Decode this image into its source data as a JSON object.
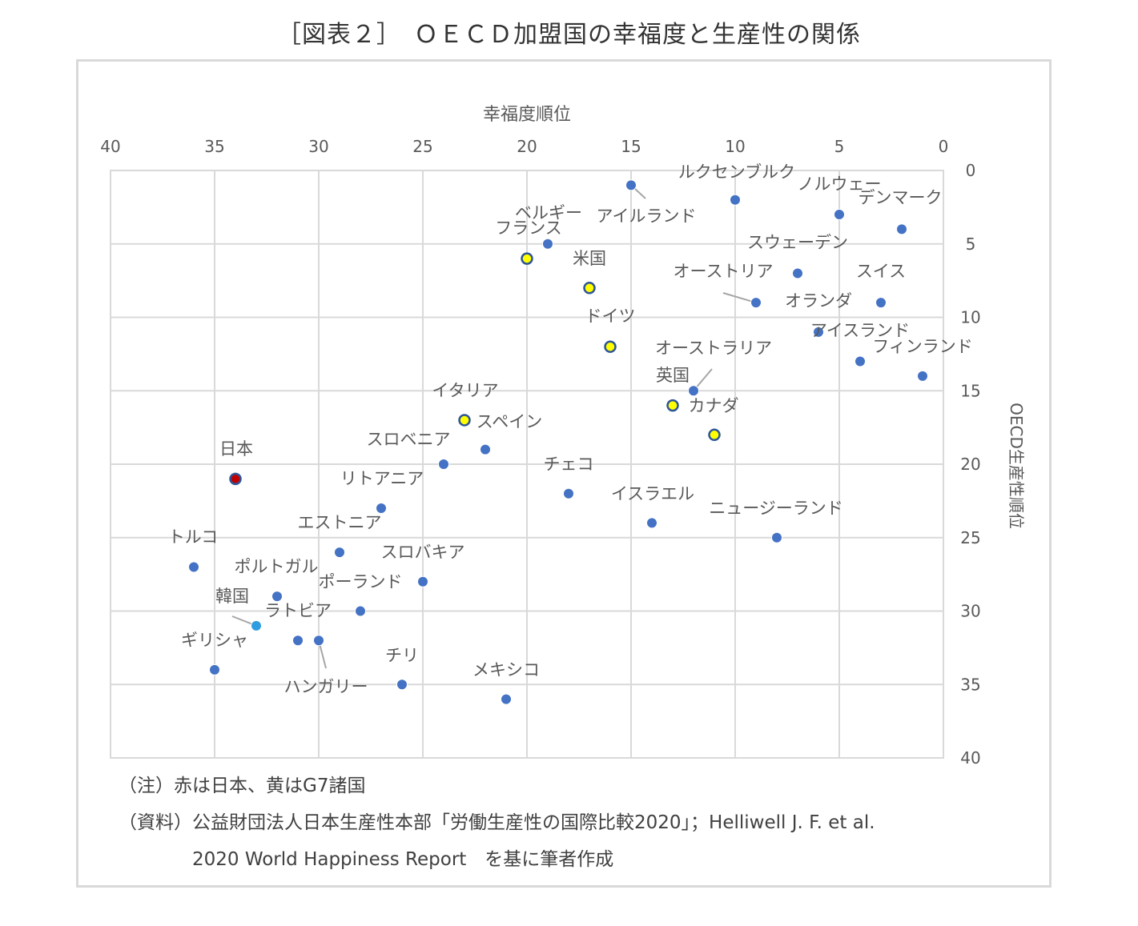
{
  "title": "［図表２］　ＯＥＣＤ加盟国の幸福度と生産性の関係",
  "notes": {
    "note1": "（注）赤は日本、黄はG7諸国",
    "note2": "（資料）公益財団法人日本生産性本部「労働生産性の国際比較2020」；Helliwell J. F. et al.",
    "note3": "2020 World Happiness Report　を基に筆者作成"
  },
  "chart_data": {
    "type": "scatter",
    "xlabel": "幸福度順位",
    "ylabel": "OECD生産性順位",
    "xlim": [
      40,
      0
    ],
    "ylim": [
      40,
      0
    ],
    "x_reversed": true,
    "y_reversed": true,
    "x_axis_position": "top",
    "y_axis_position": "right",
    "x_ticks": [
      "40",
      "35",
      "30",
      "25",
      "20",
      "15",
      "10",
      "5",
      "0"
    ],
    "y_ticks": [
      "0",
      "5",
      "10",
      "15",
      "20",
      "25",
      "30",
      "35",
      "40"
    ],
    "grid": true,
    "colors": {
      "default": "#4472c4",
      "japan": "#c00000",
      "g7": "#ffff00",
      "korea": "#2e9de0",
      "outline": "#2f5597"
    },
    "points": [
      {
        "label": "ルクセンブルク",
        "x": 15,
        "y": 1,
        "group": "default"
      },
      {
        "label": "ノルウェー",
        "x": 10,
        "y": 2,
        "group": "default"
      },
      {
        "label": "デンマーク",
        "x": 5,
        "y": 3,
        "group": "default"
      },
      {
        "label": "アイルランド",
        "x": 2,
        "y": 4,
        "group": "default"
      },
      {
        "label": "ベルギー",
        "x": 19,
        "y": 5,
        "group": "default"
      },
      {
        "label": "フランス",
        "x": 20,
        "y": 6,
        "group": "g7"
      },
      {
        "label": "米国",
        "x": 17,
        "y": 8,
        "group": "g7"
      },
      {
        "label": "スウェーデン",
        "x": 7,
        "y": 7,
        "group": "default"
      },
      {
        "label": "オーストリア",
        "x": 9,
        "y": 9,
        "group": "default"
      },
      {
        "label": "スイス",
        "x": 3,
        "y": 9,
        "group": "default"
      },
      {
        "label": "オランダ",
        "x": 6,
        "y": 11,
        "group": "default"
      },
      {
        "label": "ドイツ",
        "x": 16,
        "y": 12,
        "group": "g7"
      },
      {
        "label": "アイスランド",
        "x": 4,
        "y": 13,
        "group": "default"
      },
      {
        "label": "フィンランド",
        "x": 1,
        "y": 14,
        "group": "default"
      },
      {
        "label": "オーストラリア",
        "x": 12,
        "y": 15,
        "group": "default"
      },
      {
        "label": "英国",
        "x": 13,
        "y": 16,
        "group": "g7"
      },
      {
        "label": "カナダ",
        "x": 11,
        "y": 18,
        "group": "g7"
      },
      {
        "label": "イタリア",
        "x": 23,
        "y": 17,
        "group": "g7"
      },
      {
        "label": "スペイン",
        "x": 22,
        "y": 19,
        "group": "default"
      },
      {
        "label": "スロベニア",
        "x": 24,
        "y": 20,
        "group": "default"
      },
      {
        "label": "日本",
        "x": 34,
        "y": 21,
        "group": "japan"
      },
      {
        "label": "チェコ",
        "x": 18,
        "y": 22,
        "group": "default"
      },
      {
        "label": "リトアニア",
        "x": 27,
        "y": 23,
        "group": "default"
      },
      {
        "label": "イスラエル",
        "x": 14,
        "y": 24,
        "group": "default"
      },
      {
        "label": "ニュージーランド",
        "x": 8,
        "y": 25,
        "group": "default"
      },
      {
        "label": "エストニア",
        "x": 29,
        "y": 26,
        "group": "default"
      },
      {
        "label": "トルコ",
        "x": 36,
        "y": 27,
        "group": "default"
      },
      {
        "label": "スロバキア",
        "x": 25,
        "y": 28,
        "group": "default"
      },
      {
        "label": "ポルトガル",
        "x": 32,
        "y": 29,
        "group": "default"
      },
      {
        "label": "ポーランド",
        "x": 28,
        "y": 30,
        "group": "default"
      },
      {
        "label": "韓国",
        "x": 33,
        "y": 31,
        "group": "korea"
      },
      {
        "label": "ラトビア",
        "x": 31,
        "y": 32,
        "group": "default"
      },
      {
        "label": "ハンガリー",
        "x": 30,
        "y": 32,
        "group": "default"
      },
      {
        "label": "ギリシャ",
        "x": 35,
        "y": 34,
        "group": "default"
      },
      {
        "label": "チリ",
        "x": 26,
        "y": 35,
        "group": "default"
      },
      {
        "label": "メキシコ",
        "x": 21,
        "y": 36,
        "group": "default"
      }
    ]
  }
}
